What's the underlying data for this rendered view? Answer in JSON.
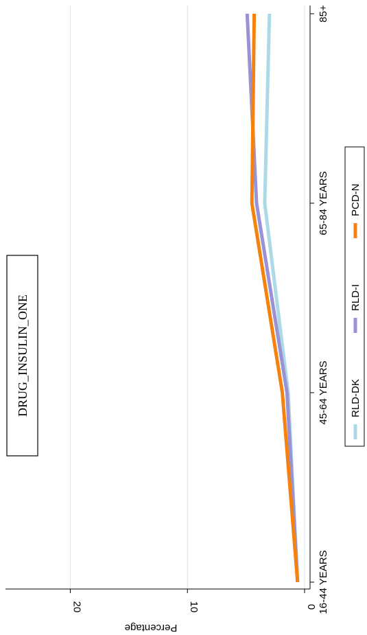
{
  "chart_data": {
    "type": "line",
    "title": "DRUG_INSULIN_ONE",
    "ylabel": "Percentage",
    "xlabel": "",
    "categories": [
      "16-44 YEARS",
      "45-64 YEARS",
      "65-84 YEARS",
      "85+"
    ],
    "ylim": [
      0,
      26
    ],
    "yticks": [
      0,
      10,
      20
    ],
    "grid": true,
    "legend_position": "bottom",
    "series": [
      {
        "name": "RLD-DK",
        "color": "#add8e6",
        "values": [
          0.6,
          1.4,
          3.4,
          3.0
        ]
      },
      {
        "name": "RLD-I",
        "color": "#9a92d4",
        "values": [
          0.6,
          1.5,
          4.1,
          4.9
        ]
      },
      {
        "name": "PCD-N",
        "color": "#f5820f",
        "values": [
          0.6,
          1.9,
          4.5,
          4.3
        ]
      }
    ]
  }
}
